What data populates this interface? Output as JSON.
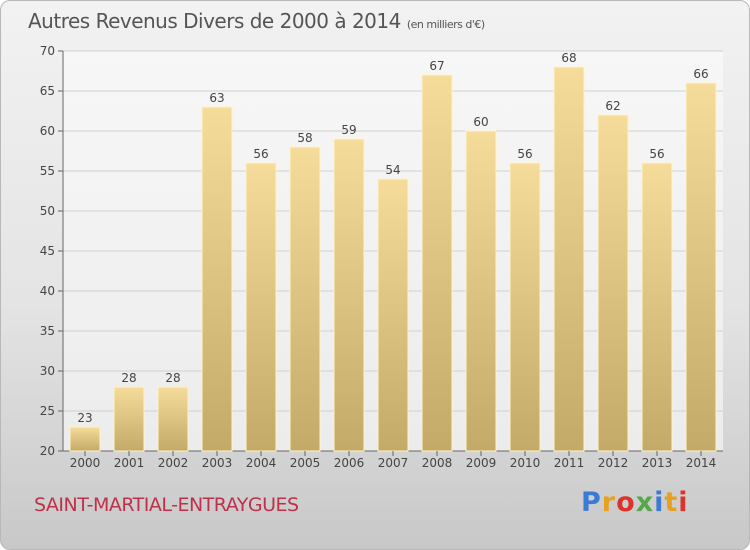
{
  "title": "Autres Revenus Divers de 2000 à 2014",
  "unit": "(en milliers d'€)",
  "commune": "SAINT-MARTIAL-ENTRAYGUES",
  "logo_text": "Proxiti",
  "colors": {
    "bar_light": "#f5dc9a",
    "bar_dark": "#c4aa68",
    "axis": "#666666",
    "grid": "#d0d0d0",
    "commune": "#c0304a"
  },
  "chart_data": {
    "type": "bar",
    "title": "Autres Revenus Divers de 2000 à 2014",
    "categories": [
      "2000",
      "2001",
      "2002",
      "2003",
      "2004",
      "2005",
      "2006",
      "2007",
      "2008",
      "2009",
      "2010",
      "2011",
      "2012",
      "2013",
      "2014"
    ],
    "values": [
      23,
      28,
      28,
      63,
      56,
      58,
      59,
      54,
      67,
      60,
      56,
      68,
      62,
      56,
      66
    ],
    "ylim": [
      20,
      70
    ],
    "yticks": [
      20,
      25,
      30,
      35,
      40,
      45,
      50,
      55,
      60,
      65,
      70
    ],
    "grid": true,
    "xlabel": "",
    "ylabel": ""
  }
}
